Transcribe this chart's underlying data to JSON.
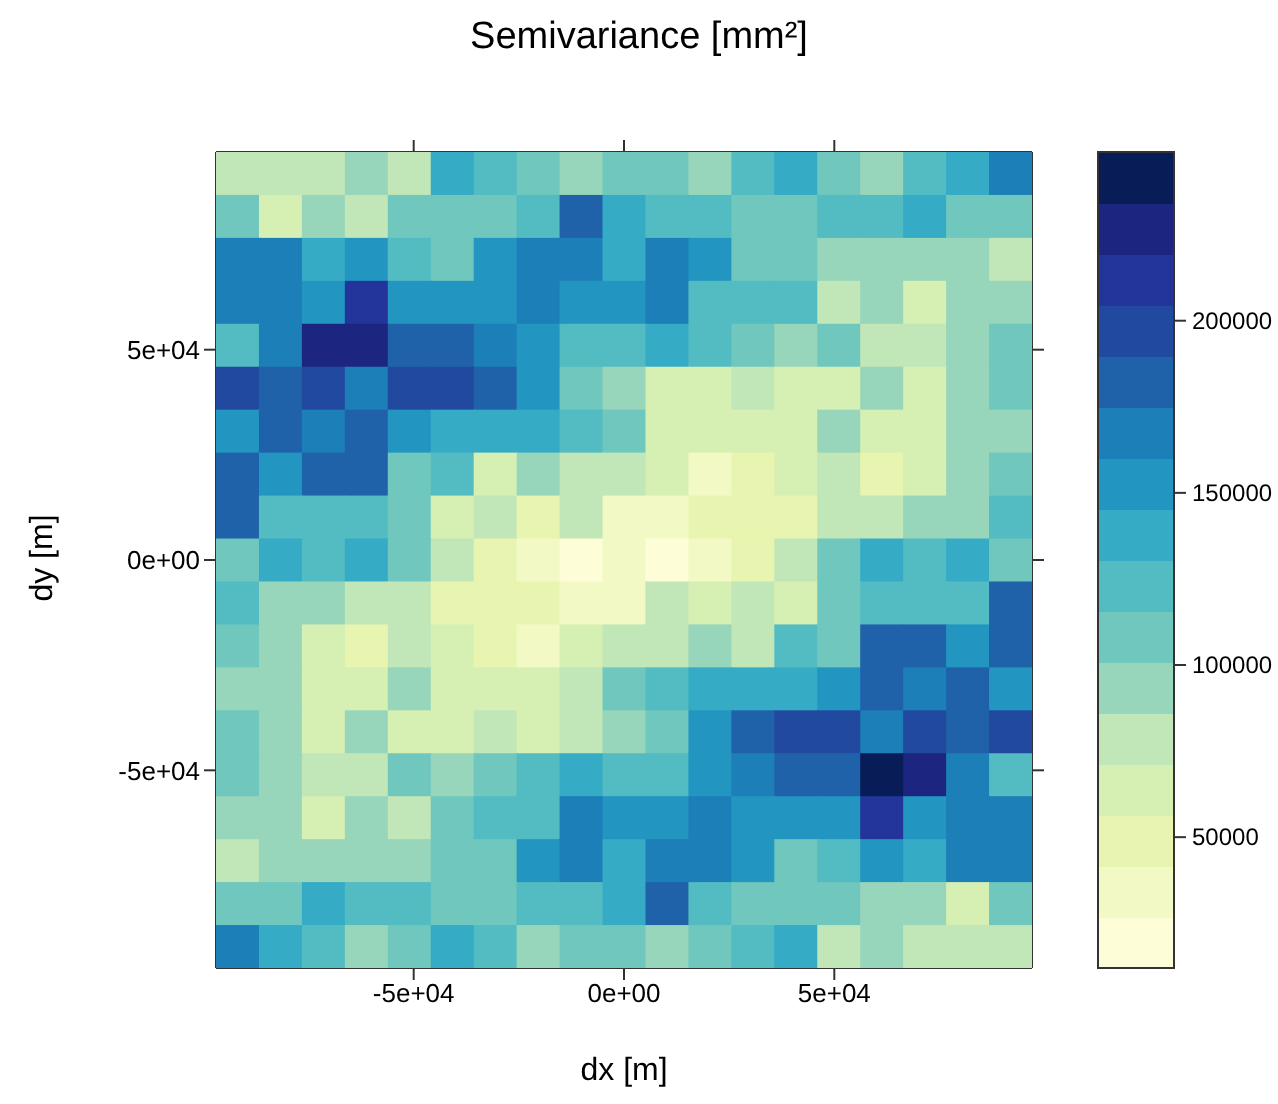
{
  "chart_data": {
    "type": "heatmap",
    "title": "Semivariance [mm²]",
    "xlabel": "dx [m]",
    "ylabel": "dy [m]",
    "xlim": [
      -97000,
      97000
    ],
    "ylim": [
      -97000,
      97000
    ],
    "xticks": [
      {
        "value": -50000,
        "label": "-5e+04"
      },
      {
        "value": 0,
        "label": "0e+00"
      },
      {
        "value": 50000,
        "label": "5e+04"
      }
    ],
    "yticks": [
      {
        "value": -50000,
        "label": "-5e+04"
      },
      {
        "value": 0,
        "label": "0e+00"
      },
      {
        "value": 50000,
        "label": "5e+04"
      }
    ],
    "clim": [
      12000,
      249000
    ],
    "cticks": [
      50000,
      100000,
      150000,
      200000
    ],
    "colors": [
      "#fdfed8",
      "#f2f9c4",
      "#e8f5b0",
      "#d6efb3",
      "#c1e6b7",
      "#97d6bb",
      "#6fc7bd",
      "#52bcc2",
      "#36abc6",
      "#2296c1",
      "#1d7fb7",
      "#2062aa",
      "#2249a0",
      "#23349a",
      "#1c2580",
      "#081d58"
    ],
    "cells": [
      [
        79000,
        79000,
        79000,
        93000,
        79000,
        138000,
        123000,
        108000,
        93000,
        108000,
        108000,
        93000,
        123000,
        138000,
        108000,
        93000,
        123000,
        138000,
        168000
      ],
      [
        108000,
        64000,
        93000,
        79000,
        108000,
        108000,
        108000,
        123000,
        182000,
        138000,
        123000,
        123000,
        108000,
        108000,
        123000,
        123000,
        138000,
        108000,
        108000
      ],
      [
        168000,
        168000,
        138000,
        153000,
        123000,
        108000,
        153000,
        168000,
        168000,
        138000,
        168000,
        153000,
        108000,
        108000,
        93000,
        93000,
        93000,
        93000,
        79000
      ],
      [
        168000,
        168000,
        153000,
        212000,
        153000,
        153000,
        153000,
        168000,
        153000,
        153000,
        168000,
        123000,
        123000,
        123000,
        79000,
        93000,
        64000,
        93000,
        93000
      ],
      [
        123000,
        168000,
        227000,
        227000,
        182000,
        182000,
        168000,
        153000,
        123000,
        123000,
        138000,
        123000,
        108000,
        93000,
        108000,
        79000,
        79000,
        93000,
        108000
      ],
      [
        197000,
        182000,
        197000,
        168000,
        197000,
        197000,
        182000,
        153000,
        108000,
        93000,
        64000,
        64000,
        79000,
        64000,
        64000,
        93000,
        64000,
        93000,
        108000
      ],
      [
        153000,
        182000,
        168000,
        182000,
        153000,
        138000,
        138000,
        138000,
        123000,
        108000,
        64000,
        64000,
        64000,
        64000,
        93000,
        64000,
        64000,
        93000,
        93000
      ],
      [
        182000,
        153000,
        182000,
        182000,
        108000,
        123000,
        64000,
        93000,
        79000,
        79000,
        64000,
        34000,
        49000,
        64000,
        79000,
        49000,
        64000,
        93000,
        108000
      ],
      [
        182000,
        123000,
        123000,
        123000,
        108000,
        64000,
        79000,
        49000,
        79000,
        34000,
        34000,
        49000,
        49000,
        49000,
        79000,
        79000,
        93000,
        93000,
        123000
      ],
      [
        108000,
        138000,
        123000,
        138000,
        108000,
        79000,
        49000,
        34000,
        19000,
        34000,
        19000,
        34000,
        49000,
        79000,
        108000,
        138000,
        123000,
        138000,
        108000
      ],
      [
        123000,
        93000,
        93000,
        79000,
        79000,
        49000,
        49000,
        49000,
        34000,
        34000,
        79000,
        64000,
        79000,
        64000,
        108000,
        123000,
        123000,
        123000,
        182000
      ],
      [
        108000,
        93000,
        64000,
        49000,
        79000,
        64000,
        49000,
        34000,
        64000,
        79000,
        79000,
        93000,
        79000,
        123000,
        108000,
        182000,
        182000,
        153000,
        182000
      ],
      [
        93000,
        93000,
        64000,
        64000,
        93000,
        64000,
        64000,
        64000,
        79000,
        108000,
        123000,
        138000,
        138000,
        138000,
        153000,
        182000,
        168000,
        182000,
        153000
      ],
      [
        108000,
        93000,
        64000,
        93000,
        64000,
        64000,
        79000,
        64000,
        79000,
        93000,
        108000,
        153000,
        182000,
        197000,
        197000,
        168000,
        197000,
        182000,
        197000
      ],
      [
        108000,
        93000,
        79000,
        79000,
        108000,
        93000,
        108000,
        123000,
        138000,
        123000,
        123000,
        153000,
        168000,
        182000,
        182000,
        242000,
        227000,
        168000,
        123000
      ],
      [
        93000,
        93000,
        64000,
        93000,
        79000,
        108000,
        123000,
        123000,
        168000,
        153000,
        153000,
        168000,
        153000,
        153000,
        153000,
        212000,
        153000,
        168000,
        168000
      ],
      [
        79000,
        93000,
        93000,
        93000,
        93000,
        108000,
        108000,
        153000,
        168000,
        138000,
        168000,
        168000,
        153000,
        108000,
        123000,
        153000,
        138000,
        168000,
        168000
      ],
      [
        108000,
        108000,
        138000,
        123000,
        123000,
        108000,
        108000,
        123000,
        123000,
        138000,
        182000,
        123000,
        108000,
        108000,
        108000,
        93000,
        93000,
        64000,
        108000
      ],
      [
        168000,
        138000,
        123000,
        93000,
        108000,
        138000,
        123000,
        93000,
        108000,
        108000,
        93000,
        108000,
        123000,
        138000,
        79000,
        93000,
        79000,
        79000,
        79000
      ]
    ]
  }
}
